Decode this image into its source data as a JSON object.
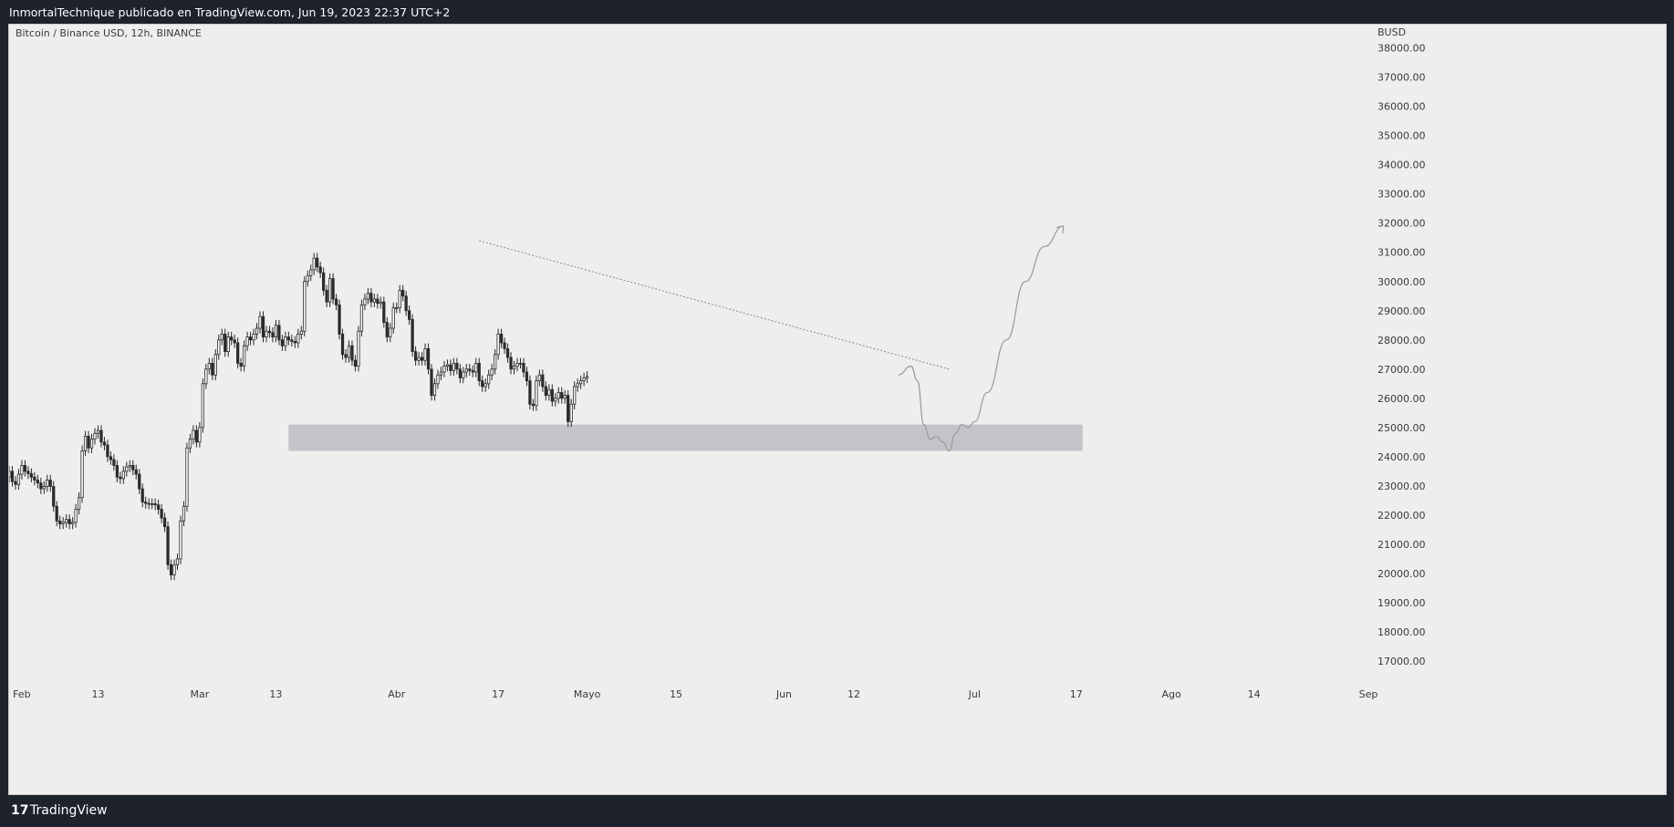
{
  "header": {
    "publisher_line": "InmortalTechnique publicado en TradingView.com, Jun 19, 2023 22:37 UTC+2"
  },
  "footer": {
    "logo_glyph": "17",
    "brand": "TradingView"
  },
  "chart_data": {
    "type": "candlestick",
    "title": "Bitcoin / Binance USD, 12h, BINANCE",
    "currency_label": "BUSD",
    "ylim": [
      16500,
      38800
    ],
    "y_ticks": [
      17000,
      18000,
      19000,
      20000,
      21000,
      22000,
      23000,
      24000,
      25000,
      26000,
      27000,
      28000,
      29000,
      30000,
      31000,
      32000,
      33000,
      34000,
      35000,
      36000,
      37000,
      38000
    ],
    "y_tick_labels": [
      "17000.00",
      "18000.00",
      "19000.00",
      "20000.00",
      "21000.00",
      "22000.00",
      "23000.00",
      "24000.00",
      "25000.00",
      "26000.00",
      "27000.00",
      "28000.00",
      "29000.00",
      "30000.00",
      "31000.00",
      "32000.00",
      "33000.00",
      "34000.00",
      "35000.00",
      "36000.00",
      "37000.00",
      "38000.00"
    ],
    "x_range": [
      "2023-01-30",
      "2023-09-01"
    ],
    "x_ticks": [
      {
        "date": "2023-02-01",
        "label": "Feb"
      },
      {
        "date": "2023-02-13",
        "label": "13"
      },
      {
        "date": "2023-03-01",
        "label": "Mar"
      },
      {
        "date": "2023-03-13",
        "label": "13"
      },
      {
        "date": "2023-04-01",
        "label": "Abr"
      },
      {
        "date": "2023-04-17",
        "label": "17"
      },
      {
        "date": "2023-05-01",
        "label": "Mayo"
      },
      {
        "date": "2023-05-15",
        "label": "15"
      },
      {
        "date": "2023-06-01",
        "label": "Jun"
      },
      {
        "date": "2023-06-12",
        "label": "12"
      },
      {
        "date": "2023-07-01",
        "label": "Jul"
      },
      {
        "date": "2023-07-17",
        "label": "17"
      },
      {
        "date": "2023-08-01",
        "label": "Ago"
      },
      {
        "date": "2023-08-14",
        "label": "14"
      },
      {
        "date": "2023-09-01",
        "label": "Sep"
      }
    ],
    "candle_interval_hours": 12,
    "first_candle": "2023-01-30",
    "candles_close": [
      23500,
      23150,
      23050,
      23400,
      23700,
      23500,
      23420,
      23300,
      23200,
      23100,
      22900,
      22980,
      23200,
      22980,
      22300,
      21800,
      21700,
      21750,
      21850,
      21700,
      21750,
      22200,
      22600,
      24200,
      24700,
      24300,
      24600,
      24800,
      24900,
      24500,
      24400,
      24000,
      23900,
      23700,
      23300,
      23250,
      23500,
      23650,
      23700,
      23550,
      23400,
      22900,
      22450,
      22400,
      22380,
      22390,
      22350,
      22200,
      21900,
      21600,
      20300,
      19950,
      20300,
      20500,
      21800,
      22300,
      24300,
      24600,
      24900,
      24500,
      25000,
      26500,
      27000,
      27200,
      26800,
      27500,
      28000,
      28200,
      27600,
      28100,
      28000,
      27900,
      27200,
      27100,
      27800,
      28100,
      28000,
      28200,
      28400,
      28800,
      28100,
      28300,
      28250,
      28100,
      28500,
      28000,
      27800,
      28100,
      28000,
      27950,
      27900,
      28200,
      28300,
      30000,
      30200,
      30400,
      30800,
      30500,
      30300,
      29700,
      29300,
      30100,
      29400,
      29200,
      28200,
      27500,
      27400,
      27800,
      27300,
      27100,
      28300,
      29200,
      29400,
      29600,
      29300,
      29400,
      29250,
      29300,
      28600,
      28100,
      28400,
      29100,
      29100,
      29700,
      29500,
      29000,
      28700,
      27600,
      27300,
      27400,
      27300,
      27700,
      27000,
      26100,
      26500,
      26800,
      26900,
      27100,
      27150,
      26950,
      27200,
      27000,
      26700,
      26900,
      27000,
      26950,
      26900,
      27200,
      26600,
      26400,
      26500,
      26800,
      27000,
      27500,
      28200,
      27900,
      27700,
      27400,
      27000,
      27100,
      27200,
      27200,
      26900,
      26600,
      25800,
      25750,
      26600,
      26800,
      26400,
      26100,
      26300,
      25900,
      26000,
      26200,
      26000,
      26100,
      25200,
      25800,
      26400,
      26500,
      26600,
      26700,
      26750
    ],
    "candles_open": [
      23300,
      23500,
      23150,
      23050,
      23400,
      23700,
      23500,
      23420,
      23300,
      23200,
      23100,
      22900,
      22980,
      23200,
      22980,
      22300,
      21800,
      21700,
      21750,
      21850,
      21700,
      21750,
      22200,
      22600,
      24200,
      24700,
      24300,
      24600,
      24800,
      24900,
      24500,
      24400,
      24000,
      23900,
      23700,
      23300,
      23250,
      23500,
      23650,
      23700,
      23550,
      23400,
      22900,
      22450,
      22400,
      22380,
      22390,
      22350,
      22200,
      21900,
      21600,
      20300,
      19950,
      20300,
      20500,
      21800,
      22300,
      24300,
      24600,
      24900,
      24500,
      25000,
      26500,
      27000,
      27200,
      26800,
      27500,
      28000,
      28200,
      27600,
      28100,
      28000,
      27900,
      27200,
      27100,
      27800,
      28100,
      28000,
      28200,
      28400,
      28800,
      28100,
      28300,
      28250,
      28100,
      28500,
      28000,
      27800,
      28100,
      28000,
      27950,
      27900,
      28200,
      28300,
      30000,
      30200,
      30400,
      30800,
      30500,
      30300,
      29700,
      29300,
      30100,
      29400,
      29200,
      28200,
      27500,
      27400,
      27800,
      27300,
      27100,
      28300,
      29200,
      29400,
      29600,
      29300,
      29400,
      29250,
      29300,
      28600,
      28100,
      28400,
      29100,
      29100,
      29700,
      29500,
      29000,
      28700,
      27600,
      27300,
      27400,
      27300,
      27700,
      27000,
      26100,
      26500,
      26800,
      26900,
      27100,
      27150,
      26950,
      27200,
      27000,
      26700,
      26900,
      27000,
      26950,
      26900,
      27200,
      26600,
      26400,
      26500,
      26800,
      27000,
      27500,
      28200,
      27900,
      27700,
      27400,
      27000,
      27100,
      27200,
      27200,
      26900,
      26600,
      25800,
      25750,
      26600,
      26800,
      26400,
      26100,
      26300,
      25900,
      26000,
      26200,
      26000,
      26100,
      25200,
      25800,
      26400,
      26500,
      26600,
      26700
    ],
    "support_zone": {
      "from": "2023-03-15",
      "to": "2023-07-18",
      "low": 24200,
      "high": 25100
    },
    "trendline": [
      {
        "date": "2023-04-14",
        "price": 31400
      },
      {
        "date": "2023-06-27",
        "price": 27000
      }
    ],
    "projection_path": [
      {
        "date": "2023-06-19",
        "price": 26800
      },
      {
        "date": "2023-06-21",
        "price": 27100
      },
      {
        "date": "2023-06-22",
        "price": 26600
      },
      {
        "date": "2023-06-23",
        "price": 25100
      },
      {
        "date": "2023-06-24",
        "price": 24600
      },
      {
        "date": "2023-06-25",
        "price": 24700
      },
      {
        "date": "2023-06-26",
        "price": 24500
      },
      {
        "date": "2023-06-27",
        "price": 24200
      },
      {
        "date": "2023-06-28",
        "price": 24800
      },
      {
        "date": "2023-06-29",
        "price": 25100
      },
      {
        "date": "2023-06-30",
        "price": 25000
      },
      {
        "date": "2023-07-01",
        "price": 25200
      },
      {
        "date": "2023-07-03",
        "price": 26200
      },
      {
        "date": "2023-07-06",
        "price": 28000
      },
      {
        "date": "2023-07-09",
        "price": 30000
      },
      {
        "date": "2023-07-12",
        "price": 31200
      },
      {
        "date": "2023-07-15",
        "price": 31900
      }
    ],
    "colors": {
      "candle_up": "#ffffff",
      "candle_down": "#2a2a2a",
      "candle_outline": "#2a2a2a",
      "zone": "#c4c3c8",
      "trendline": "#8a8a8a",
      "projection": "#9a9a9a",
      "axis_text": "#3a3a3a"
    }
  }
}
